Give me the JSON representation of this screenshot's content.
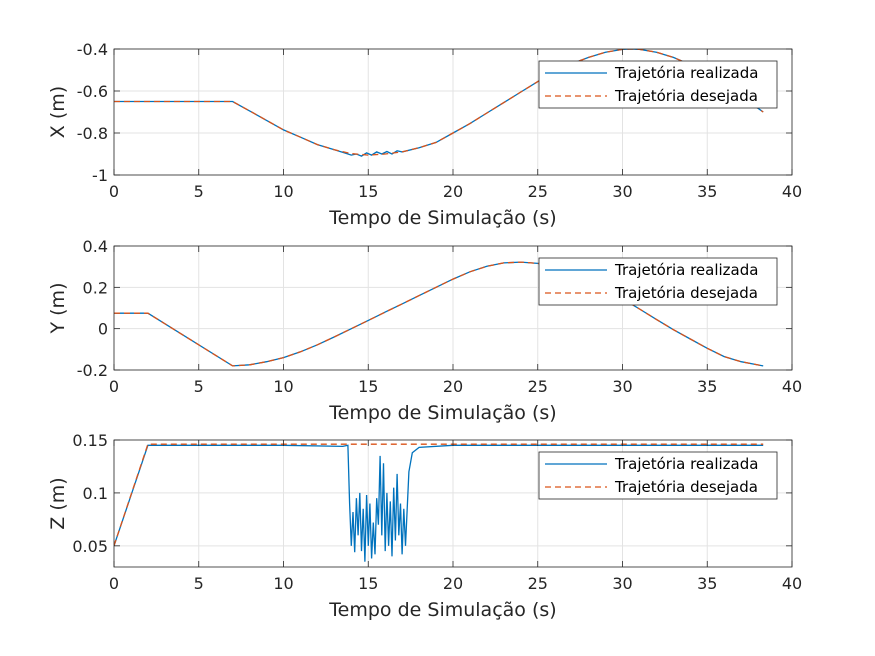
{
  "chart_data": [
    {
      "type": "line",
      "xlabel": "Tempo de Simulação (s)",
      "ylabel": "X (m)",
      "xlim": [
        0,
        40
      ],
      "ylim": [
        -1,
        -0.4
      ],
      "xticks": [
        0,
        5,
        10,
        15,
        20,
        25,
        30,
        35,
        40
      ],
      "yticks": [
        -1,
        -0.8,
        -0.6,
        -0.4
      ],
      "ytick_labels": [
        "-1",
        "-0.8",
        "-0.6",
        "-0.4"
      ],
      "grid": true,
      "legend_position": "top-right",
      "series": [
        {
          "name": "Trajetória realizada",
          "style": "solid",
          "color": "#0072BD",
          "x": [
            0,
            7,
            8,
            9,
            10,
            11,
            12,
            13,
            13.6,
            14,
            14.3,
            14.6,
            14.9,
            15.2,
            15.5,
            15.8,
            16.1,
            16.4,
            16.7,
            17,
            18,
            19,
            20,
            21,
            22,
            23,
            24,
            25,
            26,
            27,
            28,
            29,
            30,
            30.5,
            31,
            32,
            33,
            34,
            35,
            36,
            37,
            38.3
          ],
          "y": [
            -0.65,
            -0.65,
            -0.695,
            -0.74,
            -0.785,
            -0.82,
            -0.855,
            -0.88,
            -0.895,
            -0.905,
            -0.9,
            -0.91,
            -0.895,
            -0.905,
            -0.89,
            -0.9,
            -0.888,
            -0.9,
            -0.885,
            -0.89,
            -0.87,
            -0.845,
            -0.8,
            -0.755,
            -0.705,
            -0.655,
            -0.605,
            -0.555,
            -0.51,
            -0.47,
            -0.44,
            -0.415,
            -0.402,
            -0.4,
            -0.402,
            -0.415,
            -0.44,
            -0.475,
            -0.52,
            -0.57,
            -0.625,
            -0.7
          ]
        },
        {
          "name": "Trajetória desejada",
          "style": "dashed",
          "color": "#D95319",
          "x": [
            0,
            7,
            8,
            9,
            10,
            11,
            12,
            13,
            14,
            15,
            16,
            17,
            18,
            19,
            20,
            21,
            22,
            23,
            24,
            25,
            26,
            27,
            28,
            29,
            30,
            30.5,
            31,
            32,
            33,
            34,
            35,
            36,
            37,
            38.3
          ],
          "y": [
            -0.65,
            -0.65,
            -0.695,
            -0.74,
            -0.785,
            -0.82,
            -0.855,
            -0.88,
            -0.898,
            -0.905,
            -0.9,
            -0.89,
            -0.87,
            -0.845,
            -0.8,
            -0.755,
            -0.705,
            -0.655,
            -0.605,
            -0.555,
            -0.51,
            -0.47,
            -0.44,
            -0.415,
            -0.402,
            -0.4,
            -0.402,
            -0.415,
            -0.44,
            -0.475,
            -0.52,
            -0.57,
            -0.625,
            -0.7
          ]
        }
      ]
    },
    {
      "type": "line",
      "xlabel": "Tempo de Simulação (s)",
      "ylabel": "Y (m)",
      "xlim": [
        0,
        40
      ],
      "ylim": [
        -0.2,
        0.4
      ],
      "xticks": [
        0,
        5,
        10,
        15,
        20,
        25,
        30,
        35,
        40
      ],
      "yticks": [
        -0.2,
        0,
        0.2,
        0.4
      ],
      "ytick_labels": [
        "-0.2",
        "0",
        "0.2",
        "0.4"
      ],
      "grid": true,
      "legend_position": "top-right",
      "series": [
        {
          "name": "Trajetória realizada",
          "style": "solid",
          "color": "#0072BD",
          "x": [
            0,
            2,
            7,
            8,
            9,
            10,
            11,
            12,
            13,
            14,
            15,
            16,
            17,
            18,
            19,
            20,
            21,
            22,
            23,
            24,
            25,
            26,
            27,
            28,
            29,
            30,
            31,
            32,
            33,
            34,
            35,
            36,
            37,
            38.3
          ],
          "y": [
            0.075,
            0.075,
            -0.18,
            -0.175,
            -0.16,
            -0.14,
            -0.112,
            -0.078,
            -0.04,
            0.0,
            0.04,
            0.08,
            0.12,
            0.16,
            0.2,
            0.24,
            0.275,
            0.302,
            0.318,
            0.322,
            0.316,
            0.298,
            0.27,
            0.235,
            0.193,
            0.145,
            0.095,
            0.045,
            -0.005,
            -0.05,
            -0.095,
            -0.135,
            -0.16,
            -0.18
          ]
        },
        {
          "name": "Trajetória desejada",
          "style": "dashed",
          "color": "#D95319",
          "x": [
            0,
            2,
            7,
            8,
            9,
            10,
            11,
            12,
            13,
            14,
            15,
            16,
            17,
            18,
            19,
            20,
            21,
            22,
            23,
            24,
            25,
            26,
            27,
            28,
            29,
            30,
            31,
            32,
            33,
            34,
            35,
            36,
            37,
            38.3
          ],
          "y": [
            0.075,
            0.075,
            -0.18,
            -0.175,
            -0.16,
            -0.14,
            -0.112,
            -0.078,
            -0.04,
            0.0,
            0.04,
            0.08,
            0.12,
            0.16,
            0.2,
            0.24,
            0.275,
            0.302,
            0.318,
            0.322,
            0.316,
            0.298,
            0.27,
            0.235,
            0.193,
            0.145,
            0.095,
            0.045,
            -0.005,
            -0.05,
            -0.095,
            -0.135,
            -0.16,
            -0.18
          ]
        }
      ]
    },
    {
      "type": "line",
      "xlabel": "Tempo de Simulação (s)",
      "ylabel": "Z (m)",
      "xlim": [
        0,
        40
      ],
      "ylim": [
        0.03,
        0.15
      ],
      "xticks": [
        0,
        5,
        10,
        15,
        20,
        25,
        30,
        35,
        40
      ],
      "yticks": [
        0.05,
        0.1,
        0.15
      ],
      "ytick_labels": [
        "0.05",
        "0.1",
        "0.15"
      ],
      "grid": true,
      "legend_position": "top-right",
      "series": [
        {
          "name": "Trajetória realizada",
          "style": "solid",
          "color": "#0072BD",
          "x": [
            0,
            2,
            5,
            10,
            13.5,
            13.8,
            13.9,
            14.0,
            14.1,
            14.2,
            14.3,
            14.4,
            14.5,
            14.6,
            14.7,
            14.8,
            14.9,
            15.0,
            15.1,
            15.2,
            15.3,
            15.4,
            15.5,
            15.6,
            15.7,
            15.8,
            15.9,
            16.0,
            16.1,
            16.2,
            16.3,
            16.4,
            16.5,
            16.6,
            16.7,
            16.8,
            16.9,
            17.0,
            17.1,
            17.2,
            17.4,
            17.6,
            18,
            20,
            25,
            30,
            35,
            38.3
          ],
          "y": [
            0.05,
            0.145,
            0.145,
            0.145,
            0.144,
            0.145,
            0.09,
            0.05,
            0.082,
            0.044,
            0.095,
            0.06,
            0.1,
            0.045,
            0.085,
            0.035,
            0.098,
            0.05,
            0.09,
            0.038,
            0.072,
            0.042,
            0.095,
            0.07,
            0.135,
            0.06,
            0.128,
            0.045,
            0.1,
            0.05,
            0.092,
            0.04,
            0.105,
            0.055,
            0.118,
            0.06,
            0.09,
            0.042,
            0.085,
            0.05,
            0.12,
            0.138,
            0.143,
            0.145,
            0.145,
            0.145,
            0.145,
            0.145
          ]
        },
        {
          "name": "Trajetória desejada",
          "style": "dashed",
          "color": "#D95319",
          "x": [
            0,
            2,
            10,
            20,
            30,
            38.3
          ],
          "y": [
            0.05,
            0.146,
            0.146,
            0.146,
            0.146,
            0.146
          ]
        }
      ]
    }
  ]
}
